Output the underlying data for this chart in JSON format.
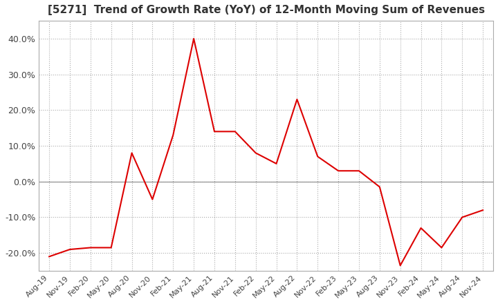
{
  "title": "[5271]  Trend of Growth Rate (YoY) of 12-Month Moving Sum of Revenues",
  "title_fontsize": 11,
  "line_color": "#dd0000",
  "background_color": "#ffffff",
  "grid_color": "#aaaaaa",
  "ylim": [
    -25,
    45
  ],
  "yticks": [
    -20,
    -10,
    0,
    10,
    20,
    30,
    40
  ],
  "ytick_labels": [
    "-20.0%",
    "-10.0%",
    "0.0%",
    "10.0%",
    "20.0%",
    "30.0%",
    "40.0%"
  ],
  "dates": [
    "Aug-19",
    "Nov-19",
    "Feb-20",
    "May-20",
    "Aug-20",
    "Nov-20",
    "Feb-21",
    "May-21",
    "Aug-21",
    "Nov-21",
    "Feb-22",
    "May-22",
    "Aug-22",
    "Nov-22",
    "Feb-23",
    "May-23",
    "Aug-23",
    "Nov-23",
    "Feb-24",
    "May-24",
    "Aug-24",
    "Nov-24"
  ],
  "values": [
    -21.0,
    -19.0,
    -18.5,
    -18.5,
    8.0,
    -5.0,
    13.0,
    40.0,
    14.0,
    14.0,
    8.0,
    5.0,
    23.0,
    7.0,
    3.0,
    3.0,
    -1.5,
    -23.5,
    -13.0,
    -18.5,
    -10.0,
    -8.0
  ],
  "xtick_labels": [
    "Aug-19",
    "Nov-19",
    "Feb-20",
    "May-20",
    "Aug-20",
    "Nov-20",
    "Feb-21",
    "May-21",
    "Aug-21",
    "Nov-21",
    "Feb-22",
    "May-22",
    "Aug-22",
    "Nov-22",
    "Feb-23",
    "May-23",
    "Aug-23",
    "Nov-23",
    "Feb-24",
    "May-24",
    "Aug-24",
    "Nov-24"
  ]
}
